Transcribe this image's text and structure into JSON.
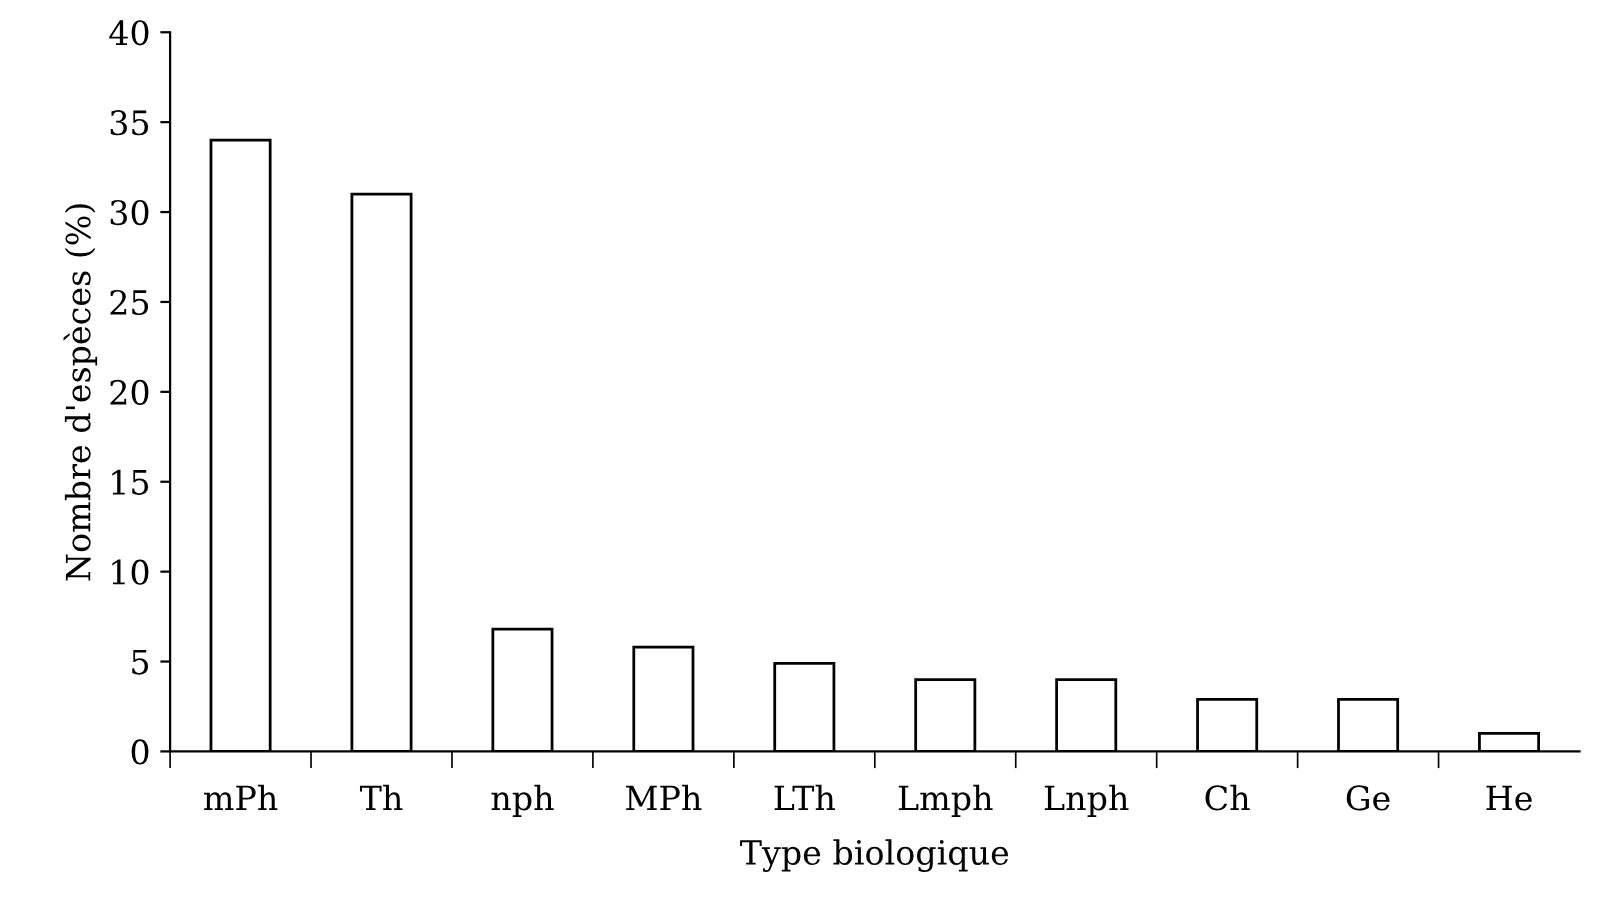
{
  "chart_data": {
    "type": "bar",
    "xlabel": "Type biologique",
    "ylabel": "Nombre d'espèces (%)",
    "categories": [
      "mPh",
      "Th",
      "nph",
      "MPh",
      "LTh",
      "Lmph",
      "Lnph",
      "Ch",
      "Ge",
      "He"
    ],
    "values": [
      34,
      31,
      6.8,
      5.8,
      4.9,
      4,
      4,
      2.9,
      2.9,
      1
    ],
    "color": "#ffffff",
    "ylim": [
      0,
      40
    ],
    "yticks": [
      0,
      5,
      10,
      15,
      20,
      25,
      30,
      35,
      40
    ],
    "grid": false,
    "legend": false
  }
}
